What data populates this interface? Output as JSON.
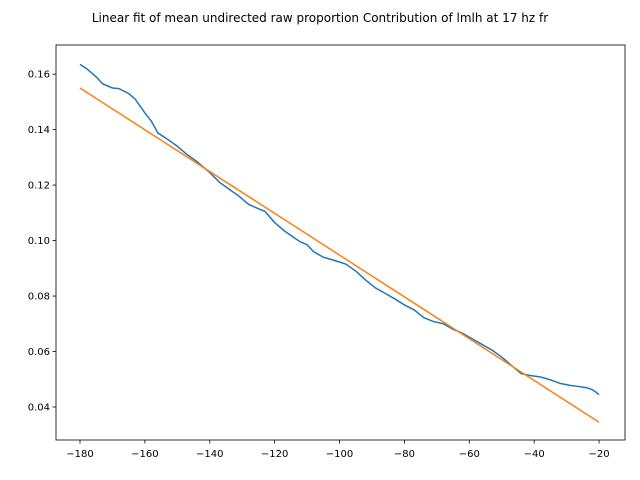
{
  "chart_data": {
    "type": "line",
    "title": "Linear fit of mean undirected raw proportion Contribution of lmlh at 17 hz fr",
    "series": [
      {
        "color": "#1f77b4",
        "x": [
          -180,
          -178,
          -175,
          -173,
          -170,
          -168,
          -165,
          -163,
          -160,
          -158,
          -156,
          -153,
          -150,
          -147,
          -144,
          -140,
          -137,
          -134,
          -131,
          -128,
          -125,
          -123,
          -120,
          -117,
          -114,
          -112,
          -110,
          -108,
          -105,
          -102,
          -98,
          -95,
          -92,
          -89,
          -86,
          -83,
          -80,
          -77,
          -74,
          -71,
          -68,
          -65,
          -62,
          -59,
          -56,
          -53,
          -50,
          -47,
          -44,
          -41,
          -38,
          -35,
          -32,
          -29,
          -27,
          -24,
          -22,
          -20
        ],
        "values": [
          0.1635,
          0.162,
          0.159,
          0.1565,
          0.155,
          0.1548,
          0.153,
          0.151,
          0.146,
          0.143,
          0.1388,
          0.1365,
          0.134,
          0.131,
          0.1285,
          0.1245,
          0.121,
          0.1185,
          0.116,
          0.113,
          0.1115,
          0.1105,
          0.1065,
          0.1035,
          0.101,
          0.0995,
          0.0985,
          0.096,
          0.094,
          0.093,
          0.0915,
          0.089,
          0.0858,
          0.083,
          0.081,
          0.079,
          0.0768,
          0.075,
          0.0722,
          0.0708,
          0.07,
          0.068,
          0.0665,
          0.0645,
          0.0625,
          0.0605,
          0.058,
          0.055,
          0.052,
          0.0513,
          0.0508,
          0.0498,
          0.0485,
          0.0478,
          0.0475,
          0.047,
          0.0462,
          0.0445
        ]
      },
      {
        "color": "#ff7f0e",
        "x": [
          -180,
          -20
        ],
        "values": [
          0.155,
          0.0345
        ]
      }
    ],
    "xlim": [
      -187.4,
      -12
    ],
    "ylim": [
      0.0281,
      0.1705
    ],
    "xticks": [
      {
        "value": -180,
        "label": "−180"
      },
      {
        "value": -160,
        "label": "−160"
      },
      {
        "value": -140,
        "label": "−140"
      },
      {
        "value": -120,
        "label": "−120"
      },
      {
        "value": -100,
        "label": "−100"
      },
      {
        "value": -80,
        "label": "−80"
      },
      {
        "value": -60,
        "label": "−60"
      },
      {
        "value": -40,
        "label": "−40"
      },
      {
        "value": -20,
        "label": "−20"
      }
    ],
    "yticks": [
      0.04,
      0.06,
      0.08,
      {
        "value": 0.1,
        "label": "0.10"
      },
      0.12,
      0.14,
      0.16
    ]
  }
}
